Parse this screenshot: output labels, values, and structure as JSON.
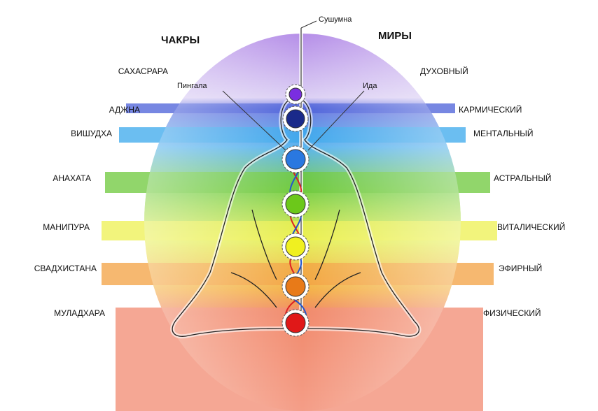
{
  "header": {
    "chakras": "ЧАКРЫ",
    "worlds": "МИРЫ"
  },
  "channels": {
    "sushumna": "Сушумна",
    "pingala": "Пингала",
    "ida": "Ида"
  },
  "chakras": [
    "САХАСРАРА",
    "АДЖНА",
    "ВИШУДХА",
    "АНАХАТА",
    "МАНИПУРА",
    "СВАДХИСТАНА",
    "МУЛАДХАРА"
  ],
  "worlds": [
    "ДУХОВНЫЙ",
    "КАРМИЧЕСКИЙ",
    "МЕНТАЛЬНЫЙ",
    "АСТРАЛЬНЫЙ",
    "ВИТАЛИЧЕСКИЙ",
    "ЭФИРНЫЙ",
    "ФИЗИЧЕСКИЙ"
  ]
}
